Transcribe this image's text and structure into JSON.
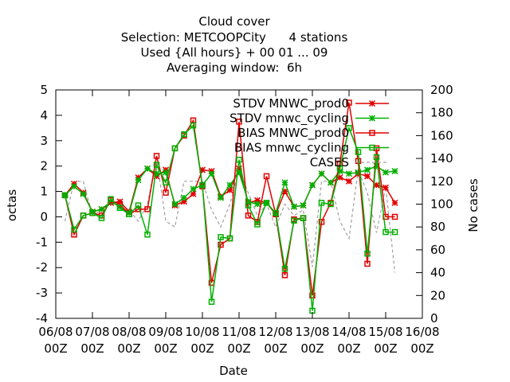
{
  "chart_data": {
    "type": "line",
    "title_lines": [
      "Cloud cover",
      "Selection: METCOOPCity      4 stations",
      "Used {All hours} + 00 01 ... 09",
      "Averaging window:  6h"
    ],
    "xlabel": "Date",
    "ylabel": "octas",
    "y2label": "No cases",
    "ylim": [
      -4,
      5
    ],
    "y2lim": [
      0,
      200
    ],
    "xlim": [
      0,
      10
    ],
    "x_ticks": [
      {
        "x": 0,
        "line1": "06/08",
        "line2": "00Z"
      },
      {
        "x": 1,
        "line1": "07/08",
        "line2": "00Z"
      },
      {
        "x": 2,
        "line1": "08/08",
        "line2": "00Z"
      },
      {
        "x": 3,
        "line1": "09/08",
        "line2": "00Z"
      },
      {
        "x": 4,
        "line1": "10/08",
        "line2": "00Z"
      },
      {
        "x": 5,
        "line1": "11/08",
        "line2": "00Z"
      },
      {
        "x": 6,
        "line1": "12/08",
        "line2": "00Z"
      },
      {
        "x": 7,
        "line1": "13/08",
        "line2": "00Z"
      },
      {
        "x": 8,
        "line1": "14/08",
        "line2": "00Z"
      },
      {
        "x": 9,
        "line1": "15/08",
        "line2": "00Z"
      },
      {
        "x": 10,
        "line1": "16/08",
        "line2": "00Z"
      }
    ],
    "y_ticks": [
      -4,
      -3,
      -2,
      -1,
      0,
      1,
      2,
      3,
      4,
      5
    ],
    "y2_ticks": [
      0,
      20,
      40,
      60,
      80,
      100,
      120,
      140,
      160,
      180,
      200
    ],
    "x": [
      0.25,
      0.5,
      0.75,
      1.0,
      1.25,
      1.5,
      1.75,
      2.0,
      2.25,
      2.5,
      2.75,
      3.0,
      3.25,
      3.5,
      3.75,
      4.0,
      4.25,
      4.5,
      4.75,
      5.0,
      5.25,
      5.5,
      5.75,
      6.0,
      6.25,
      6.5,
      6.75,
      7.0,
      7.25,
      7.5,
      7.75,
      8.0,
      8.25,
      8.5,
      8.75,
      9.0,
      9.25
    ],
    "series": [
      {
        "name": "STDV MNWC_prod0",
        "color": "#e00000",
        "marker": "star",
        "dashed": false,
        "axis": "y",
        "values": [
          0.85,
          1.3,
          0.95,
          0.2,
          0.3,
          0.55,
          0.6,
          0.2,
          1.55,
          1.9,
          1.6,
          1.85,
          0.45,
          0.6,
          0.9,
          1.85,
          1.8,
          0.8,
          1.05,
          1.9,
          0.55,
          0.65,
          0.55,
          0.1,
          1.0,
          0.4,
          0.45,
          1.25,
          1.7,
          1.35,
          1.55,
          1.4,
          1.7,
          1.6,
          1.25,
          1.15,
          0.55
        ]
      },
      {
        "name": "STDV mnwc_cycling",
        "color": "#00b000",
        "marker": "star",
        "dashed": false,
        "axis": "y",
        "values": [
          0.85,
          1.2,
          0.9,
          0.2,
          0.3,
          0.6,
          0.4,
          0.15,
          1.45,
          1.9,
          1.7,
          1.75,
          0.5,
          0.75,
          1.1,
          1.25,
          1.7,
          0.75,
          1.25,
          1.75,
          0.6,
          0.5,
          0.55,
          0.15,
          1.35,
          0.4,
          0.45,
          1.25,
          1.7,
          1.35,
          1.8,
          1.7,
          1.75,
          1.85,
          2.0,
          1.75,
          1.8
        ]
      },
      {
        "name": "BIAS MNWC_prod0",
        "color": "#e00000",
        "marker": "square",
        "dashed": false,
        "axis": "y",
        "values": [
          0.85,
          -0.7,
          0.05,
          0.15,
          0.05,
          0.65,
          0.5,
          0.1,
          0.3,
          0.3,
          2.4,
          0.95,
          2.7,
          3.2,
          3.8,
          1.2,
          -2.6,
          -1.1,
          -0.85,
          3.75,
          0.05,
          -0.2,
          1.6,
          0.1,
          -2.3,
          -0.1,
          -0.05,
          -3.1,
          -0.2,
          0.55,
          2.1,
          4.5,
          2.2,
          -1.85,
          2.7,
          0.0,
          0.0
        ]
      },
      {
        "name": "BIAS mnwc_cycling",
        "color": "#00b000",
        "marker": "square",
        "dashed": false,
        "axis": "y",
        "values": [
          0.85,
          -0.5,
          0.05,
          0.15,
          -0.05,
          0.7,
          0.35,
          0.1,
          0.45,
          -0.7,
          2.05,
          1.35,
          2.7,
          3.25,
          3.6,
          1.25,
          -3.35,
          -0.8,
          -0.85,
          2.25,
          0.45,
          -0.3,
          0.55,
          0.15,
          -2.05,
          -0.15,
          -0.05,
          -3.7,
          0.55,
          0.5,
          1.9,
          3.5,
          2.55,
          -1.45,
          2.35,
          -0.6,
          -0.6
        ]
      },
      {
        "name": "CASES",
        "color": "#a0a0a0",
        "marker": "none",
        "dashed": true,
        "axis": "y2",
        "values": [
          85,
          120,
          120,
          90,
          95,
          100,
          100,
          95,
          85,
          100,
          140,
          85,
          80,
          120,
          120,
          120,
          95,
          80,
          100,
          130,
          110,
          90,
          100,
          80,
          100,
          90,
          95,
          45,
          120,
          120,
          85,
          70,
          130,
          110,
          75,
          115,
          40
        ]
      }
    ],
    "grid": false,
    "legend_placement": "top-right"
  }
}
